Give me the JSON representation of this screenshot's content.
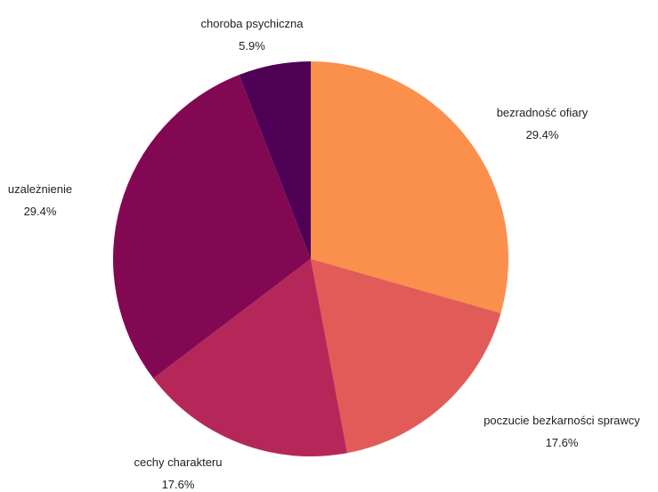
{
  "chart_data": {
    "type": "pie",
    "title": "",
    "slices": [
      {
        "label": "bezradność ofiary",
        "value": 29.4,
        "value_label": "29.4%",
        "color": "#fb8f4c"
      },
      {
        "label": "poczucie bezkarności sprawcy",
        "value": 17.6,
        "value_label": "17.6%",
        "color": "#e15c59"
      },
      {
        "label": "cechy charakteru",
        "value": 17.6,
        "value_label": "17.6%",
        "color": "#b52759"
      },
      {
        "label": "uzależnienie",
        "value": 29.4,
        "value_label": "29.4%",
        "color": "#830853"
      },
      {
        "label": "choroba psychiczna",
        "value": 5.9,
        "value_label": "5.9%",
        "color": "#4d0054"
      }
    ],
    "start_angle": "12 o'clock",
    "direction": "clockwise",
    "legend": "none"
  }
}
